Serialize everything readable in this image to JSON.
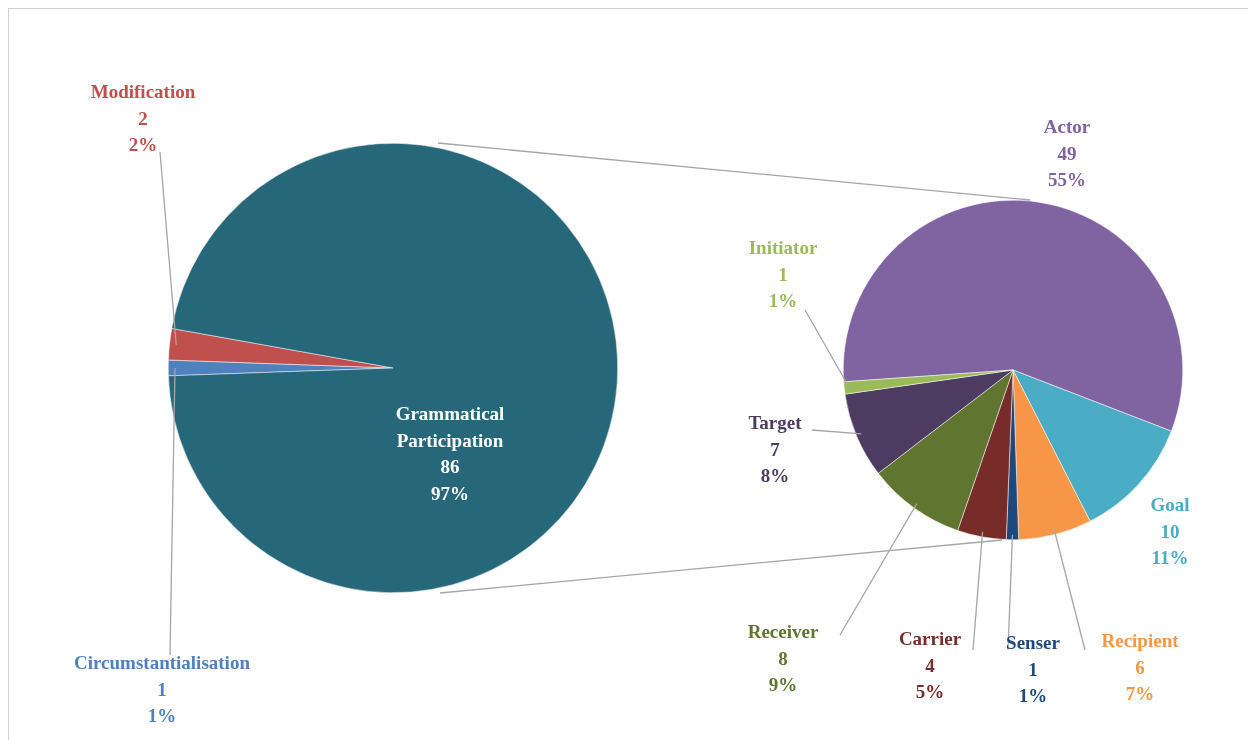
{
  "chart_data": [
    {
      "type": "pie",
      "categories": [
        "Circumstantialisation",
        "Modification",
        "Grammatical Participation"
      ],
      "values": [
        1,
        2,
        86
      ],
      "colors": [
        "#4f81bd",
        "#c0504d",
        "#26687a"
      ],
      "value_labels": [
        "1\n1%",
        "2\n2%",
        "86\n97%"
      ]
    },
    {
      "type": "pie",
      "categories": [
        "Actor",
        "Goal",
        "Recipient",
        "Senser",
        "Carrier",
        "Receiver",
        "Target",
        "Initiator"
      ],
      "values": [
        49,
        10,
        6,
        1,
        4,
        8,
        7,
        1
      ],
      "colors": [
        "#8064a2",
        "#4bacc6",
        "#f79646",
        "#1f497d",
        "#772c2a",
        "#5f7530",
        "#4d3b62",
        "#9bbb59"
      ],
      "value_labels": [
        "49\n55%",
        "10\n11%",
        "6\n7%",
        "1\n1%",
        "4\n5%",
        "8\n9%",
        "7\n8%",
        "1\n1%"
      ]
    }
  ]
}
